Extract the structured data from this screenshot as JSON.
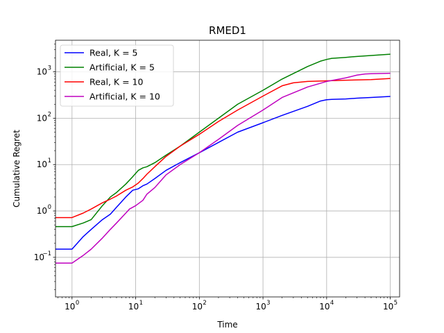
{
  "chart_data": {
    "type": "line",
    "title": "RMED1",
    "xlabel": "Time",
    "ylabel": "Cumulative Regret",
    "xscale": "log",
    "yscale": "log",
    "xlim": [
      0.55,
      140000
    ],
    "ylim": [
      0.014,
      4800
    ],
    "grid": true,
    "legend_position": "top-left",
    "x_ticks": [
      {
        "base": "10",
        "exp": "0"
      },
      {
        "base": "10",
        "exp": "1"
      },
      {
        "base": "10",
        "exp": "2"
      },
      {
        "base": "10",
        "exp": "3"
      },
      {
        "base": "10",
        "exp": "4"
      },
      {
        "base": "10",
        "exp": "5"
      }
    ],
    "y_ticks": [
      {
        "base": "10",
        "exp": "−1"
      },
      {
        "base": "10",
        "exp": "0"
      },
      {
        "base": "10",
        "exp": "1"
      },
      {
        "base": "10",
        "exp": "2"
      },
      {
        "base": "10",
        "exp": "3"
      }
    ],
    "series": [
      {
        "name": "Real, K = 5",
        "color": "#0000ff",
        "x": [
          0.55,
          1,
          1.5,
          2,
          3,
          4,
          5,
          7,
          9,
          11,
          13,
          15,
          20,
          30,
          50,
          100,
          200,
          400,
          1000,
          2000,
          5000,
          8000,
          10000,
          12000,
          20000,
          30000,
          50000,
          100000
        ],
        "y": [
          0.15,
          0.15,
          0.28,
          0.4,
          0.65,
          0.85,
          1.2,
          2.0,
          2.8,
          3.0,
          3.5,
          3.8,
          5.0,
          7.5,
          11,
          18,
          30,
          50,
          80,
          115,
          180,
          235,
          250,
          255,
          260,
          270,
          280,
          295
        ]
      },
      {
        "name": "Artificial, K = 5",
        "color": "#008000",
        "x": [
          0.55,
          1,
          1.5,
          2,
          3,
          4,
          5,
          7,
          9,
          11,
          13,
          15,
          20,
          30,
          50,
          100,
          200,
          400,
          1000,
          2000,
          5000,
          8000,
          10000,
          12000,
          20000,
          30000,
          50000,
          100000
        ],
        "y": [
          0.46,
          0.46,
          0.55,
          0.65,
          1.3,
          2.0,
          2.5,
          3.8,
          5.5,
          7.5,
          8.5,
          9.0,
          11,
          16,
          25,
          50,
          100,
          200,
          400,
          700,
          1300,
          1700,
          1850,
          1950,
          2050,
          2150,
          2250,
          2400
        ]
      },
      {
        "name": "Real, K = 10",
        "color": "#ff0000",
        "x": [
          0.55,
          1,
          1.5,
          2,
          3,
          4,
          5,
          7,
          9,
          11,
          13,
          15,
          20,
          30,
          50,
          100,
          200,
          400,
          1000,
          2000,
          3000,
          5000,
          10000,
          20000,
          50000,
          100000
        ],
        "y": [
          0.72,
          0.72,
          0.9,
          1.1,
          1.5,
          1.8,
          2.1,
          2.8,
          3.3,
          4.0,
          5.0,
          6.2,
          9.0,
          15,
          25,
          45,
          85,
          150,
          300,
          500,
          580,
          620,
          640,
          660,
          680,
          720
        ]
      },
      {
        "name": "Artificial, K = 10",
        "color": "#bf00bf",
        "x": [
          0.55,
          1,
          1.5,
          2,
          3,
          4,
          5,
          7,
          8,
          10,
          13,
          15,
          20,
          30,
          50,
          100,
          200,
          400,
          1000,
          2000,
          5000,
          10000,
          20000,
          30000,
          40000,
          50000,
          100000
        ],
        "y": [
          0.075,
          0.075,
          0.11,
          0.15,
          0.26,
          0.4,
          0.55,
          0.9,
          1.1,
          1.3,
          1.7,
          2.3,
          3.2,
          6.0,
          10,
          18,
          35,
          70,
          150,
          280,
          470,
          620,
          740,
          850,
          900,
          910,
          930
        ]
      }
    ]
  }
}
